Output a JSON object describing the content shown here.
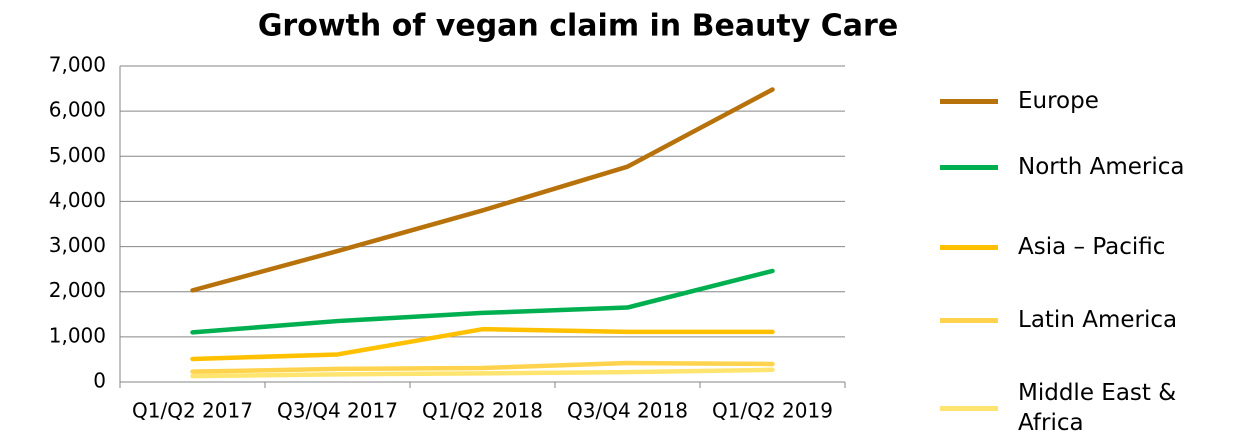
{
  "chart_data": {
    "type": "line",
    "title": "Growth of vegan claim in Beauty Care",
    "categories": [
      "Q1/Q2 2017",
      "Q3/Q4 2017",
      "Q1/Q2 2018",
      "Q3/Q4 2018",
      "Q1/Q2 2019"
    ],
    "series": [
      {
        "name": "Europe",
        "color": "#b8720c",
        "values": [
          2030,
          2900,
          3800,
          4770,
          6480
        ]
      },
      {
        "name": "North America",
        "color": "#00b050",
        "values": [
          1100,
          1350,
          1530,
          1650,
          2460
        ]
      },
      {
        "name": "Asia – Pacific",
        "color": "#ffc000",
        "values": [
          510,
          610,
          1170,
          1110,
          1110
        ]
      },
      {
        "name": "Latin America",
        "color": "#ffd34d",
        "values": [
          230,
          290,
          310,
          420,
          400
        ]
      },
      {
        "name": "Middle East & Africa",
        "color": "#ffe570",
        "values": [
          130,
          170,
          190,
          220,
          270
        ]
      }
    ],
    "ylim": [
      0,
      7000
    ],
    "yticks": [
      0,
      {
        "value": 1000,
        "label": "1,000"
      },
      {
        "value": 2000,
        "label": "2,000"
      },
      {
        "value": 3000,
        "label": "3,000"
      },
      {
        "value": 4000,
        "label": "4,000"
      },
      {
        "value": 5000,
        "label": "5,000"
      },
      {
        "value": 6000,
        "label": "6,000"
      },
      {
        "value": 7000,
        "label": "7,000"
      }
    ],
    "grid": true,
    "legend": "right"
  }
}
